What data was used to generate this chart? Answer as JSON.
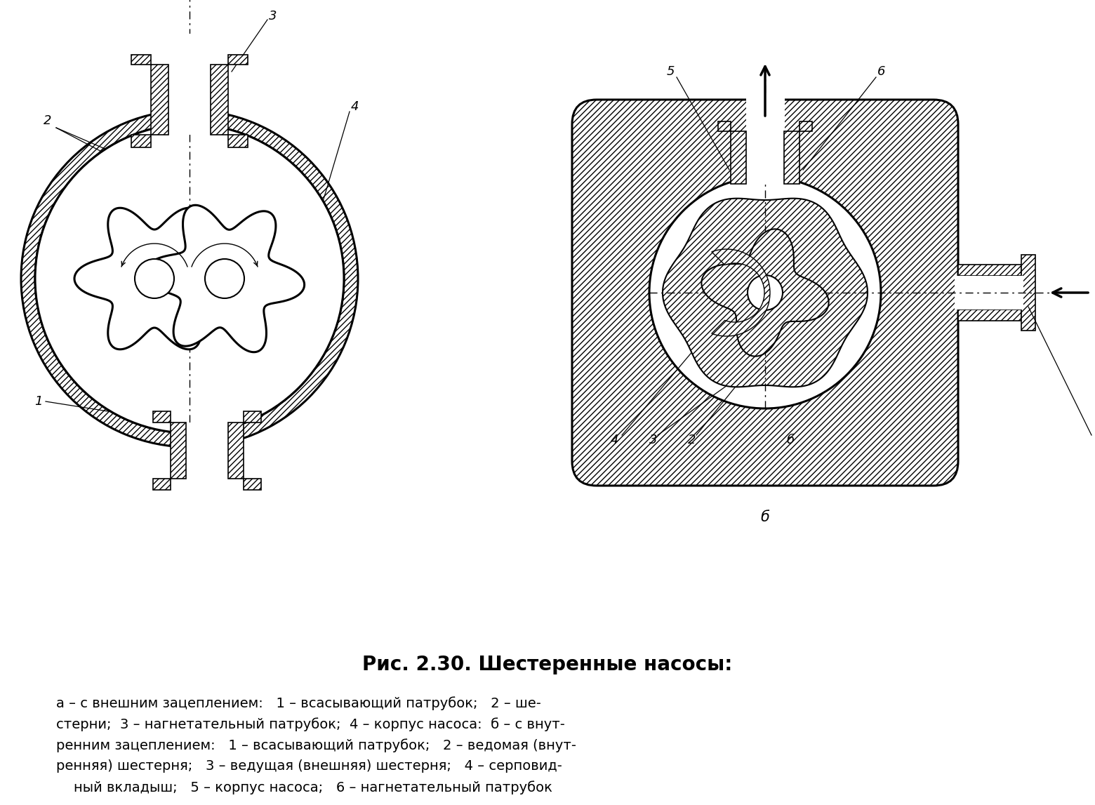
{
  "title": "Рис. 2.30. Шестеренные насосы:",
  "title_fontsize": 20,
  "caption_lines": [
    "а – с внешним зацеплением:   1 – всасывающий патрубок;   2 – ше-",
    "стерни;  3 – нагнетательный патрубок;  4 – корпус насоса:  б – с внут-",
    "ренним зацеплением:   1 – всасывающий патрубок;   2 – ведомая (внут-",
    "ренняя) шестерня;   3 – ведущая (внешняя) шестерня;   4 – серповид-",
    "    ный вкладыш;   5 – корпус насоса;   6 – нагнетательный патрубок"
  ],
  "caption_fontsize": 14,
  "bg_color": "#ffffff",
  "line_color": "#000000"
}
